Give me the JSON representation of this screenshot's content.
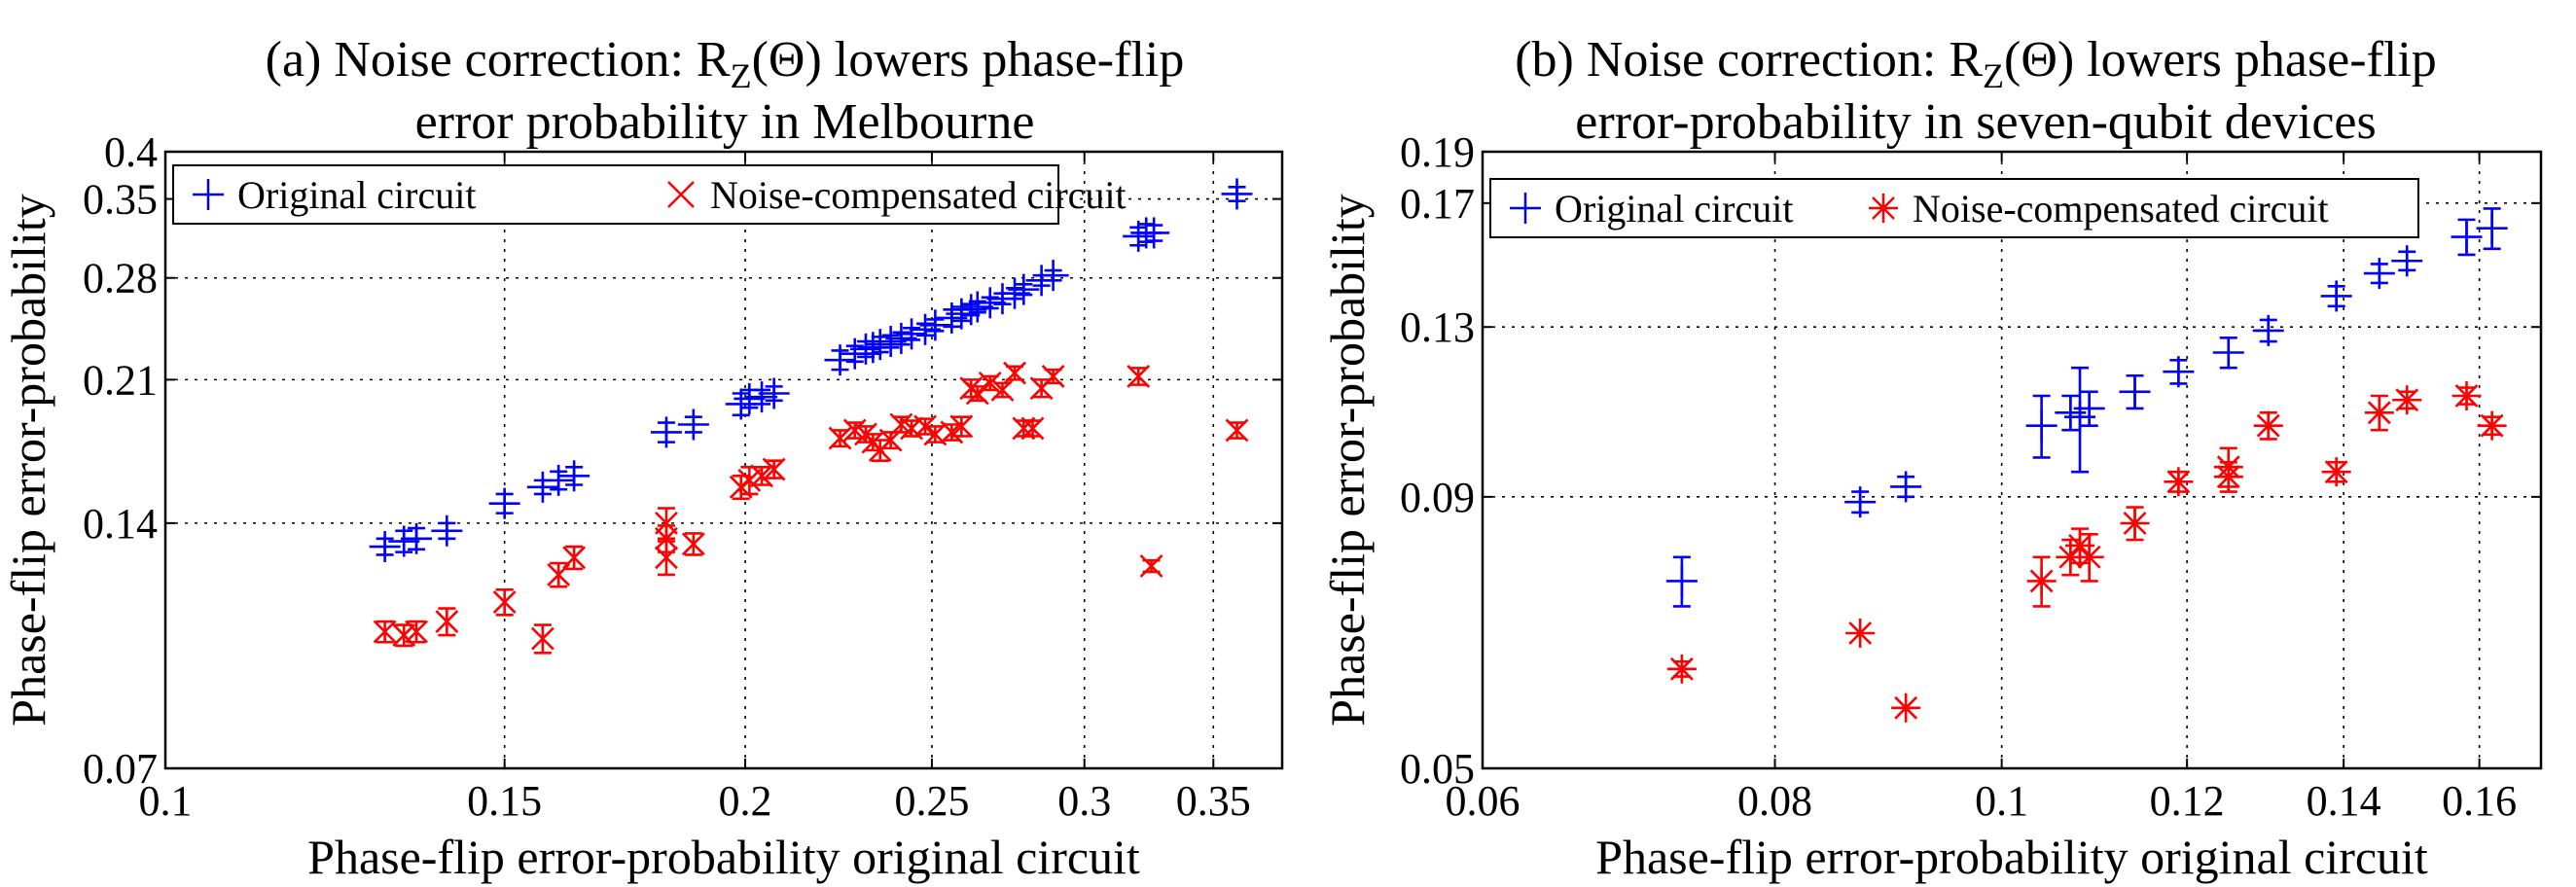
{
  "chart_data": [
    {
      "type": "scatter",
      "scale": "log-log",
      "title_line1_prefix": "(a)  Noise correction: R",
      "title_line1_sub": "Z",
      "title_line1_suffix": "(Θ) lowers phase-flip",
      "title_line2": "error probability  in Melbourne",
      "xlabel": "Phase-flip error-probability original circuit",
      "ylabel": "Phase-flip error-probability",
      "xlim": [
        0.1,
        0.38
      ],
      "ylim": [
        0.07,
        0.4
      ],
      "xticks": [
        0.1,
        0.15,
        0.2,
        0.25,
        0.3,
        0.35
      ],
      "xtick_labels": [
        "0.1",
        "0.15",
        "0.2",
        "0.25",
        "0.3",
        "0.35"
      ],
      "yticks": [
        0.07,
        0.14,
        0.21,
        0.28,
        0.35,
        0.4
      ],
      "ytick_labels": [
        "0.07",
        "0.14",
        "0.21",
        "0.28",
        "0.35",
        "0.4"
      ],
      "grid": true,
      "legend_position": "top-left",
      "series": [
        {
          "name": "Original circuit",
          "marker": "plus",
          "color": "#0000ff",
          "points": [
            {
              "x": 0.13,
              "y": 0.131,
              "err": 0.003
            },
            {
              "x": 0.133,
              "y": 0.133,
              "err": 0.004
            },
            {
              "x": 0.135,
              "y": 0.134,
              "err": 0.004
            },
            {
              "x": 0.14,
              "y": 0.137,
              "err": 0.003
            },
            {
              "x": 0.15,
              "y": 0.148,
              "err": 0.004
            },
            {
              "x": 0.157,
              "y": 0.155,
              "err": 0.003
            },
            {
              "x": 0.16,
              "y": 0.158,
              "err": 0.004
            },
            {
              "x": 0.163,
              "y": 0.16,
              "err": 0.004
            },
            {
              "x": 0.182,
              "y": 0.181,
              "err": 0.005
            },
            {
              "x": 0.188,
              "y": 0.185,
              "err": 0.004
            },
            {
              "x": 0.199,
              "y": 0.196,
              "err": 0.006
            },
            {
              "x": 0.201,
              "y": 0.199,
              "err": 0.005
            },
            {
              "x": 0.204,
              "y": 0.2,
              "err": 0.004
            },
            {
              "x": 0.207,
              "y": 0.202,
              "err": 0.004
            },
            {
              "x": 0.224,
              "y": 0.222,
              "err": 0.006
            },
            {
              "x": 0.228,
              "y": 0.226,
              "err": 0.005
            },
            {
              "x": 0.231,
              "y": 0.229,
              "err": 0.005
            },
            {
              "x": 0.233,
              "y": 0.23,
              "err": 0.004
            },
            {
              "x": 0.235,
              "y": 0.232,
              "err": 0.005
            },
            {
              "x": 0.238,
              "y": 0.234,
              "err": 0.004
            },
            {
              "x": 0.241,
              "y": 0.236,
              "err": 0.004
            },
            {
              "x": 0.244,
              "y": 0.239,
              "err": 0.004
            },
            {
              "x": 0.248,
              "y": 0.242,
              "err": 0.004
            },
            {
              "x": 0.251,
              "y": 0.245,
              "err": 0.004
            },
            {
              "x": 0.256,
              "y": 0.25,
              "err": 0.006
            },
            {
              "x": 0.259,
              "y": 0.253,
              "err": 0.005
            },
            {
              "x": 0.262,
              "y": 0.256,
              "err": 0.004
            },
            {
              "x": 0.264,
              "y": 0.258,
              "err": 0.004
            },
            {
              "x": 0.268,
              "y": 0.261,
              "err": 0.004
            },
            {
              "x": 0.272,
              "y": 0.264,
              "err": 0.004
            },
            {
              "x": 0.276,
              "y": 0.268,
              "err": 0.004
            },
            {
              "x": 0.279,
              "y": 0.271,
              "err": 0.004
            },
            {
              "x": 0.285,
              "y": 0.278,
              "err": 0.004
            },
            {
              "x": 0.289,
              "y": 0.282,
              "err": 0.004
            },
            {
              "x": 0.32,
              "y": 0.315,
              "err": 0.008
            },
            {
              "x": 0.323,
              "y": 0.318,
              "err": 0.008
            },
            {
              "x": 0.326,
              "y": 0.318,
              "err": 0.007
            },
            {
              "x": 0.36,
              "y": 0.355,
              "err": 0.007
            }
          ]
        },
        {
          "name": "Noise-compensated circuit",
          "marker": "x",
          "color": "#ff0000",
          "points": [
            {
              "x": 0.13,
              "y": 0.103,
              "err": 0.003
            },
            {
              "x": 0.133,
              "y": 0.102,
              "err": 0.003
            },
            {
              "x": 0.135,
              "y": 0.103,
              "err": 0.003
            },
            {
              "x": 0.14,
              "y": 0.106,
              "err": 0.004
            },
            {
              "x": 0.15,
              "y": 0.112,
              "err": 0.004
            },
            {
              "x": 0.157,
              "y": 0.101,
              "err": 0.004
            },
            {
              "x": 0.16,
              "y": 0.121,
              "err": 0.004
            },
            {
              "x": 0.163,
              "y": 0.127,
              "err": 0.004
            },
            {
              "x": 0.182,
              "y": 0.14,
              "err": 0.006
            },
            {
              "x": 0.182,
              "y": 0.134,
              "err": 0.005
            },
            {
              "x": 0.182,
              "y": 0.127,
              "err": 0.006
            },
            {
              "x": 0.188,
              "y": 0.132,
              "err": 0.004
            },
            {
              "x": 0.199,
              "y": 0.155,
              "err": 0.005
            },
            {
              "x": 0.201,
              "y": 0.158,
              "err": 0.006
            },
            {
              "x": 0.204,
              "y": 0.16,
              "err": 0.004
            },
            {
              "x": 0.207,
              "y": 0.163,
              "err": 0.004
            },
            {
              "x": 0.224,
              "y": 0.178,
              "err": 0.004
            },
            {
              "x": 0.228,
              "y": 0.182,
              "err": 0.004
            },
            {
              "x": 0.231,
              "y": 0.18,
              "err": 0.004
            },
            {
              "x": 0.233,
              "y": 0.176,
              "err": 0.004
            },
            {
              "x": 0.235,
              "y": 0.172,
              "err": 0.005
            },
            {
              "x": 0.238,
              "y": 0.177,
              "err": 0.004
            },
            {
              "x": 0.241,
              "y": 0.185,
              "err": 0.004
            },
            {
              "x": 0.244,
              "y": 0.183,
              "err": 0.004
            },
            {
              "x": 0.248,
              "y": 0.184,
              "err": 0.004
            },
            {
              "x": 0.251,
              "y": 0.18,
              "err": 0.004
            },
            {
              "x": 0.256,
              "y": 0.181,
              "err": 0.004
            },
            {
              "x": 0.259,
              "y": 0.184,
              "err": 0.005
            },
            {
              "x": 0.262,
              "y": 0.205,
              "err": 0.005
            },
            {
              "x": 0.264,
              "y": 0.202,
              "err": 0.004
            },
            {
              "x": 0.268,
              "y": 0.208,
              "err": 0.004
            },
            {
              "x": 0.272,
              "y": 0.204,
              "err": 0.004
            },
            {
              "x": 0.276,
              "y": 0.214,
              "err": 0.004
            },
            {
              "x": 0.279,
              "y": 0.183,
              "err": 0.004
            },
            {
              "x": 0.282,
              "y": 0.183,
              "err": 0.004
            },
            {
              "x": 0.285,
              "y": 0.205,
              "err": 0.005
            },
            {
              "x": 0.289,
              "y": 0.212,
              "err": 0.004
            },
            {
              "x": 0.32,
              "y": 0.212,
              "err": 0.005
            },
            {
              "x": 0.325,
              "y": 0.124,
              "err": 0.002
            },
            {
              "x": 0.36,
              "y": 0.182,
              "err": 0.004
            }
          ]
        }
      ]
    },
    {
      "type": "scatter",
      "scale": "log-log",
      "title_line1_prefix": "(b) Noise correction: R",
      "title_line1_sub": "Z",
      "title_line1_suffix": "(Θ) lowers phase-flip",
      "title_line2": "error-probability  in seven-qubit devices",
      "xlabel": "Phase-flip error-probability original circuit",
      "ylabel": "Phase-flip error-probability",
      "xlim": [
        0.06,
        0.17
      ],
      "ylim": [
        0.05,
        0.19
      ],
      "xticks": [
        0.06,
        0.08,
        0.1,
        0.12,
        0.14,
        0.16
      ],
      "xtick_labels": [
        "0.06",
        "0.08",
        "0.1",
        "0.12",
        "0.14",
        "0.16"
      ],
      "yticks": [
        0.05,
        0.09,
        0.13,
        0.17,
        0.19
      ],
      "ytick_labels": [
        "0.05",
        "0.09",
        "0.13",
        "0.17",
        "0.19"
      ],
      "grid": true,
      "legend_position": "top-left",
      "series": [
        {
          "name": "Original circuit",
          "marker": "plus",
          "color": "#0000ff",
          "points": [
            {
              "x": 0.073,
              "y": 0.075,
              "err": 0.004
            },
            {
              "x": 0.087,
              "y": 0.089,
              "err": 0.002
            },
            {
              "x": 0.091,
              "y": 0.092,
              "err": 0.002
            },
            {
              "x": 0.104,
              "y": 0.105,
              "err": 0.007
            },
            {
              "x": 0.107,
              "y": 0.108,
              "err": 0.004
            },
            {
              "x": 0.108,
              "y": 0.107,
              "err": 0.012
            },
            {
              "x": 0.109,
              "y": 0.109,
              "err": 0.004
            },
            {
              "x": 0.114,
              "y": 0.113,
              "err": 0.004
            },
            {
              "x": 0.119,
              "y": 0.118,
              "err": 0.003
            },
            {
              "x": 0.125,
              "y": 0.123,
              "err": 0.004
            },
            {
              "x": 0.13,
              "y": 0.129,
              "err": 0.003
            },
            {
              "x": 0.139,
              "y": 0.139,
              "err": 0.003
            },
            {
              "x": 0.145,
              "y": 0.146,
              "err": 0.003
            },
            {
              "x": 0.149,
              "y": 0.15,
              "err": 0.003
            },
            {
              "x": 0.158,
              "y": 0.158,
              "err": 0.006
            },
            {
              "x": 0.162,
              "y": 0.161,
              "err": 0.007
            }
          ]
        },
        {
          "name": "Noise-compensated  circuit",
          "marker": "star",
          "color": "#ff0000",
          "points": [
            {
              "x": 0.073,
              "y": 0.062,
              "err": 0.001
            },
            {
              "x": 0.087,
              "y": 0.067,
              "err": 0.0
            },
            {
              "x": 0.091,
              "y": 0.057,
              "err": 0.0
            },
            {
              "x": 0.104,
              "y": 0.075,
              "err": 0.004
            },
            {
              "x": 0.107,
              "y": 0.079,
              "err": 0.003
            },
            {
              "x": 0.108,
              "y": 0.081,
              "err": 0.003
            },
            {
              "x": 0.109,
              "y": 0.079,
              "err": 0.004
            },
            {
              "x": 0.114,
              "y": 0.085,
              "err": 0.003
            },
            {
              "x": 0.119,
              "y": 0.093,
              "err": 0.002
            },
            {
              "x": 0.125,
              "y": 0.094,
              "err": 0.003
            },
            {
              "x": 0.125,
              "y": 0.096,
              "err": 0.004
            },
            {
              "x": 0.13,
              "y": 0.105,
              "err": 0.003
            },
            {
              "x": 0.139,
              "y": 0.095,
              "err": 0.002
            },
            {
              "x": 0.145,
              "y": 0.108,
              "err": 0.004
            },
            {
              "x": 0.149,
              "y": 0.111,
              "err": 0.002
            },
            {
              "x": 0.158,
              "y": 0.112,
              "err": 0.002
            },
            {
              "x": 0.162,
              "y": 0.105,
              "err": 0.002
            }
          ]
        }
      ]
    }
  ]
}
